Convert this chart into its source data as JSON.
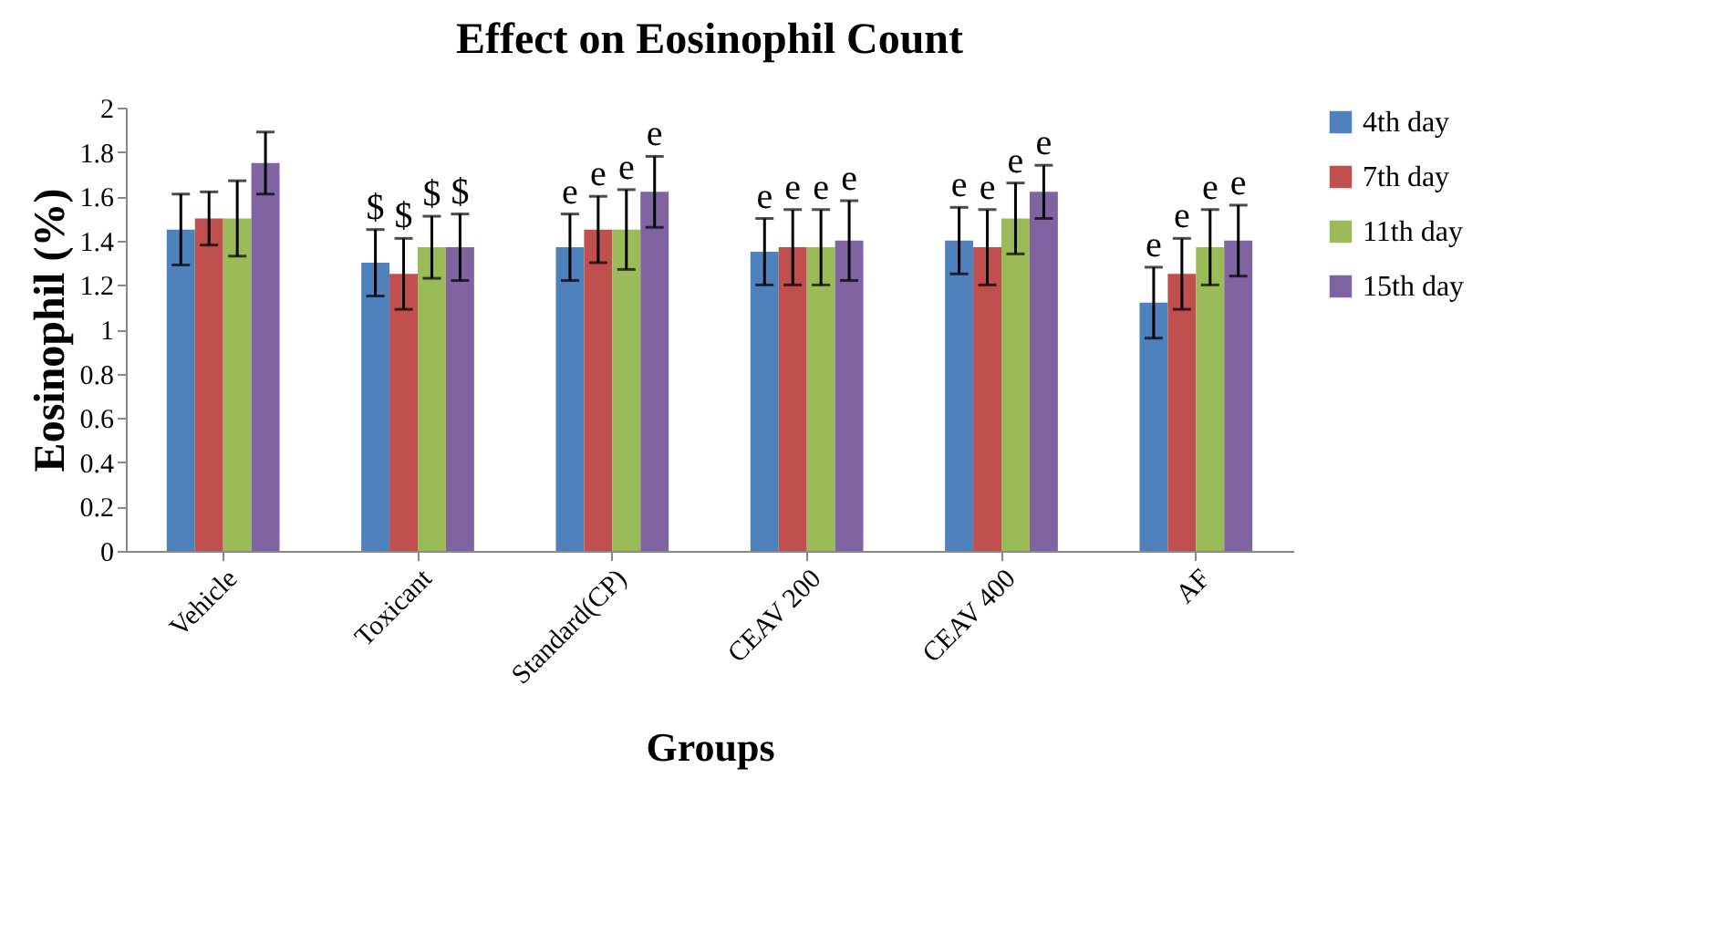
{
  "chart_data": {
    "type": "bar",
    "title": "Effect on Eosinophil Count",
    "xlabel": "Groups",
    "ylabel": "Eosinophil (%)",
    "categories": [
      "Vehicle",
      "Toxicant",
      "Standard(CP)",
      "CEAV 200",
      "CEAV 400",
      "AF"
    ],
    "series": [
      {
        "name": "4th day",
        "color": "#4f81bd",
        "values": [
          1.45,
          1.3,
          1.37,
          1.35,
          1.4,
          1.12
        ],
        "errors": [
          0.16,
          0.15,
          0.15,
          0.15,
          0.15,
          0.16
        ],
        "value_labels": [
          null,
          "$",
          "e",
          "e",
          "e",
          "e"
        ]
      },
      {
        "name": "7th day",
        "color": "#c0504d",
        "values": [
          1.5,
          1.25,
          1.45,
          1.37,
          1.37,
          1.25
        ],
        "errors": [
          0.12,
          0.16,
          0.15,
          0.17,
          0.17,
          0.16
        ],
        "value_labels": [
          null,
          "$",
          "e",
          "e",
          "e",
          "e"
        ]
      },
      {
        "name": "11th day",
        "color": "#9bbb59",
        "values": [
          1.5,
          1.37,
          1.45,
          1.37,
          1.5,
          1.37
        ],
        "errors": [
          0.17,
          0.14,
          0.18,
          0.17,
          0.16,
          0.17
        ],
        "value_labels": [
          null,
          "$",
          "e",
          "e",
          "e",
          "e"
        ]
      },
      {
        "name": "15th day",
        "color": "#8064a2",
        "values": [
          1.75,
          1.37,
          1.62,
          1.4,
          1.62,
          1.4
        ],
        "errors": [
          0.14,
          0.15,
          0.16,
          0.18,
          0.12,
          0.16
        ],
        "value_labels": [
          null,
          "$",
          "e",
          "e",
          "e",
          "e"
        ]
      }
    ],
    "ylim": [
      0,
      2
    ],
    "yticks": [
      0,
      0.2,
      0.4,
      0.6,
      0.8,
      1,
      1.2,
      1.4,
      1.6,
      1.8,
      2
    ],
    "legend": "right",
    "grid": false
  }
}
